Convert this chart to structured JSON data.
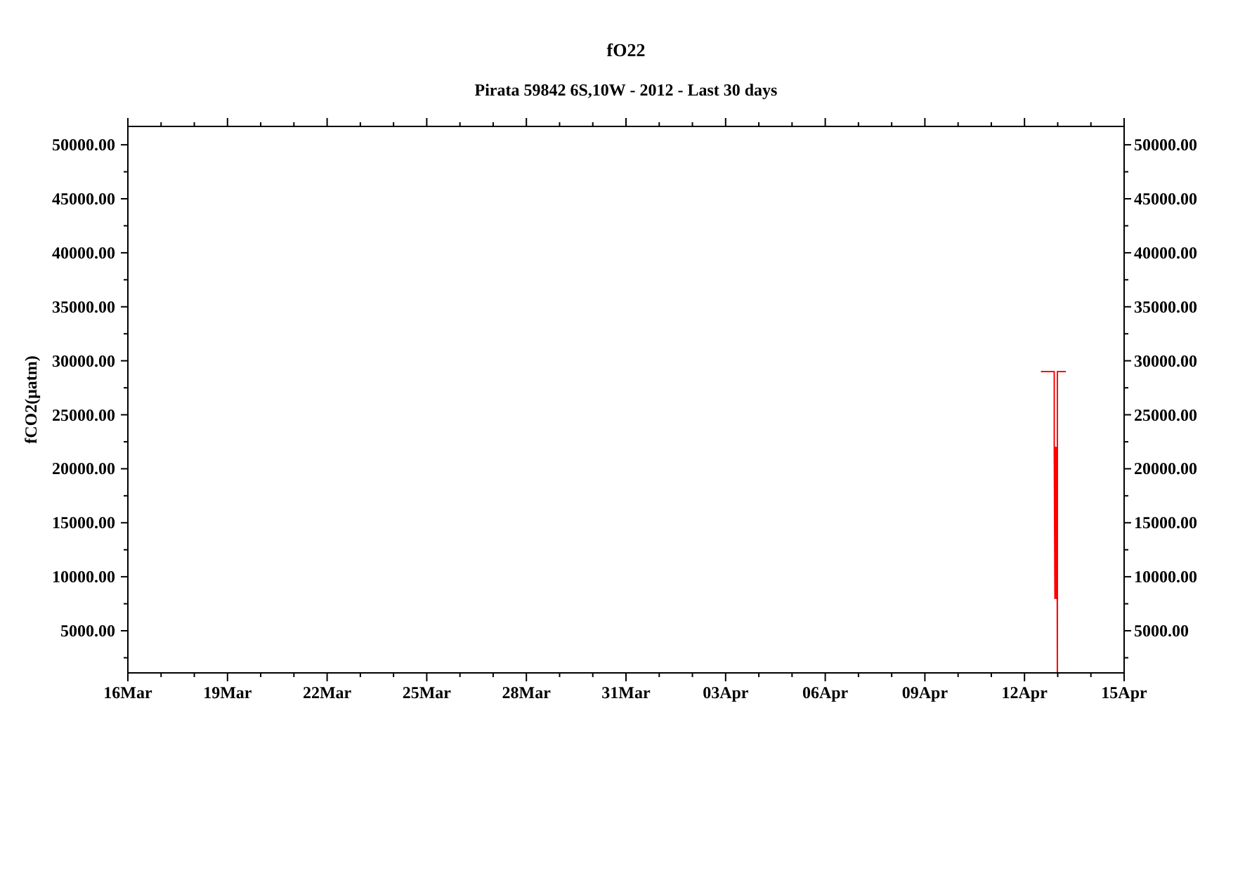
{
  "chart_data": {
    "type": "line",
    "title": "fO22",
    "subtitle": "Pirata 59842 6S,10W - 2012 - Last 30 days",
    "ylabel": "fCO2(μatm)",
    "x": [
      "2012-04-12T12:15",
      "2012-04-12T21:30",
      "2012-04-12T21:30",
      "2012-04-12T22:00",
      "2012-04-12T22:30",
      "2012-04-12T23:00",
      "2012-04-12T23:30",
      "2012-04-12T23:45",
      "2012-04-12T23:45",
      "2012-04-13T05:30"
    ],
    "values": [
      29000,
      29000,
      22000,
      8000,
      22000,
      8000,
      22000,
      1100,
      29000,
      29000
    ],
    "color": "#ff0000",
    "xlim": [
      "2012-03-16",
      "2012-04-15"
    ],
    "xticks": [
      {
        "value": "2012-03-16",
        "label": "16Mar"
      },
      {
        "value": "2012-03-17",
        "label": null
      },
      {
        "value": "2012-03-18",
        "label": null
      },
      {
        "value": "2012-03-19",
        "label": "19Mar"
      },
      {
        "value": "2012-03-20",
        "label": null
      },
      {
        "value": "2012-03-21",
        "label": null
      },
      {
        "value": "2012-03-22",
        "label": "22Mar"
      },
      {
        "value": "2012-03-23",
        "label": null
      },
      {
        "value": "2012-03-24",
        "label": null
      },
      {
        "value": "2012-03-25",
        "label": "25Mar"
      },
      {
        "value": "2012-03-26",
        "label": null
      },
      {
        "value": "2012-03-27",
        "label": null
      },
      {
        "value": "2012-03-28",
        "label": "28Mar"
      },
      {
        "value": "2012-03-29",
        "label": null
      },
      {
        "value": "2012-03-30",
        "label": null
      },
      {
        "value": "2012-03-31",
        "label": "31Mar"
      },
      {
        "value": "2012-04-01",
        "label": null
      },
      {
        "value": "2012-04-02",
        "label": null
      },
      {
        "value": "2012-04-03",
        "label": "03Apr"
      },
      {
        "value": "2012-04-04",
        "label": null
      },
      {
        "value": "2012-04-05",
        "label": null
      },
      {
        "value": "2012-04-06",
        "label": "06Apr"
      },
      {
        "value": "2012-04-07",
        "label": null
      },
      {
        "value": "2012-04-08",
        "label": null
      },
      {
        "value": "2012-04-09",
        "label": "09Apr"
      },
      {
        "value": "2012-04-10",
        "label": null
      },
      {
        "value": "2012-04-11",
        "label": null
      },
      {
        "value": "2012-04-12",
        "label": "12Apr"
      },
      {
        "value": "2012-04-13",
        "label": null
      },
      {
        "value": "2012-04-14",
        "label": null
      },
      {
        "value": "2012-04-15",
        "label": "15Apr"
      }
    ],
    "ylim": [
      1100,
      51700
    ],
    "yticks": [
      {
        "value": 2500,
        "label": null
      },
      {
        "value": 5000,
        "label": "5000.00"
      },
      {
        "value": 7500,
        "label": null
      },
      {
        "value": 10000,
        "label": "10000.00"
      },
      {
        "value": 12500,
        "label": null
      },
      {
        "value": 15000,
        "label": "15000.00"
      },
      {
        "value": 17500,
        "label": null
      },
      {
        "value": 20000,
        "label": "20000.00"
      },
      {
        "value": 22500,
        "label": null
      },
      {
        "value": 25000,
        "label": "25000.00"
      },
      {
        "value": 27500,
        "label": null
      },
      {
        "value": 30000,
        "label": "30000.00"
      },
      {
        "value": 32500,
        "label": null
      },
      {
        "value": 35000,
        "label": "35000.00"
      },
      {
        "value": 37500,
        "label": null
      },
      {
        "value": 40000,
        "label": "40000.00"
      },
      {
        "value": 42500,
        "label": null
      },
      {
        "value": 45000,
        "label": "45000.00"
      },
      {
        "value": 47500,
        "label": null
      },
      {
        "value": 50000,
        "label": "50000.00"
      }
    ],
    "y2lim": [
      1100,
      51700
    ],
    "y2ticks": [
      {
        "value": 2500,
        "label": null
      },
      {
        "value": 5000,
        "label": "5000.00"
      },
      {
        "value": 7500,
        "label": null
      },
      {
        "value": 10000,
        "label": "10000.00"
      },
      {
        "value": 12500,
        "label": null
      },
      {
        "value": 15000,
        "label": "15000.00"
      },
      {
        "value": 17500,
        "label": null
      },
      {
        "value": 20000,
        "label": "20000.00"
      },
      {
        "value": 22500,
        "label": null
      },
      {
        "value": 25000,
        "label": "25000.00"
      },
      {
        "value": 27500,
        "label": null
      },
      {
        "value": 30000,
        "label": "30000.00"
      },
      {
        "value": 32500,
        "label": null
      },
      {
        "value": 35000,
        "label": "35000.00"
      },
      {
        "value": 37500,
        "label": null
      },
      {
        "value": 40000,
        "label": "40000.00"
      },
      {
        "value": 42500,
        "label": null
      },
      {
        "value": 45000,
        "label": "45000.00"
      },
      {
        "value": 47500,
        "label": null
      },
      {
        "value": 50000,
        "label": "50000.00"
      }
    ]
  }
}
